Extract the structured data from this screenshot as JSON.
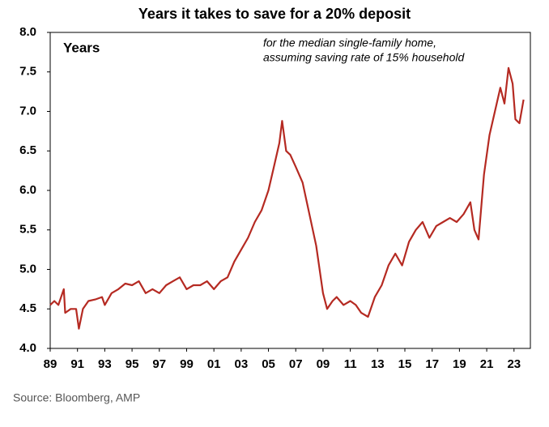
{
  "chart_data": {
    "type": "line",
    "title": "Years it takes to save for a 20% deposit",
    "y_label": "Years",
    "annotation": [
      "for the median single-family home,",
      "assuming saving rate of 15% household"
    ],
    "source": "Source: Bloomberg, AMP",
    "xlim": [
      1989,
      2024.2
    ],
    "xticks": [
      {
        "value": 1989,
        "label": "89"
      },
      {
        "value": 1991,
        "label": "91"
      },
      {
        "value": 1993,
        "label": "93"
      },
      {
        "value": 1995,
        "label": "95"
      },
      {
        "value": 1997,
        "label": "97"
      },
      {
        "value": 1999,
        "label": "99"
      },
      {
        "value": 2001,
        "label": "01"
      },
      {
        "value": 2003,
        "label": "03"
      },
      {
        "value": 2005,
        "label": "05"
      },
      {
        "value": 2007,
        "label": "07"
      },
      {
        "value": 2009,
        "label": "09"
      },
      {
        "value": 2011,
        "label": "11"
      },
      {
        "value": 2013,
        "label": "13"
      },
      {
        "value": 2015,
        "label": "15"
      },
      {
        "value": 2017,
        "label": "17"
      },
      {
        "value": 2019,
        "label": "19"
      },
      {
        "value": 2021,
        "label": "21"
      },
      {
        "value": 2023,
        "label": "23"
      }
    ],
    "ylim": [
      4,
      8
    ],
    "yticks": [
      {
        "value": 4,
        "label": "4.0"
      },
      4.5,
      {
        "value": 5,
        "label": "5.0"
      },
      5.5,
      {
        "value": 6,
        "label": "6.0"
      },
      6.5,
      {
        "value": 7,
        "label": "7.0"
      },
      7.5,
      {
        "value": 8,
        "label": "8.0"
      }
    ],
    "series": [
      {
        "name": "Years",
        "color": "#b52a22",
        "x": [
          1989.0,
          1989.3,
          1989.6,
          1990.0,
          1990.1,
          1990.5,
          1990.9,
          1991.1,
          1991.4,
          1991.8,
          1992.3,
          1992.8,
          1993.0,
          1993.5,
          1994.0,
          1994.5,
          1995.0,
          1995.5,
          1996.0,
          1996.5,
          1997.0,
          1997.5,
          1998.0,
          1998.5,
          1999.0,
          1999.5,
          2000.0,
          2000.5,
          2001.0,
          2001.5,
          2002.0,
          2002.5,
          2003.0,
          2003.5,
          2004.0,
          2004.5,
          2005.0,
          2005.4,
          2005.8,
          2006.0,
          2006.3,
          2006.6,
          2007.0,
          2007.5,
          2008.0,
          2008.5,
          2009.0,
          2009.3,
          2009.7,
          2010.0,
          2010.5,
          2011.0,
          2011.4,
          2011.8,
          2012.3,
          2012.8,
          2013.3,
          2013.8,
          2014.3,
          2014.8,
          2015.3,
          2015.8,
          2016.3,
          2016.8,
          2017.3,
          2017.8,
          2018.3,
          2018.8,
          2019.3,
          2019.8,
          2020.1,
          2020.4,
          2020.8,
          2021.2,
          2021.6,
          2022.0,
          2022.3,
          2022.6,
          2022.9,
          2023.1,
          2023.4,
          2023.7
        ],
        "values": [
          4.55,
          4.6,
          4.55,
          4.75,
          4.45,
          4.5,
          4.5,
          4.25,
          4.5,
          4.6,
          4.62,
          4.65,
          4.55,
          4.7,
          4.75,
          4.82,
          4.8,
          4.85,
          4.7,
          4.75,
          4.7,
          4.8,
          4.85,
          4.9,
          4.75,
          4.8,
          4.8,
          4.85,
          4.75,
          4.85,
          4.9,
          5.1,
          5.25,
          5.4,
          5.6,
          5.75,
          6.0,
          6.3,
          6.6,
          6.88,
          6.5,
          6.45,
          6.3,
          6.1,
          5.7,
          5.3,
          4.7,
          4.5,
          4.6,
          4.65,
          4.55,
          4.6,
          4.55,
          4.45,
          4.4,
          4.65,
          4.8,
          5.05,
          5.2,
          5.05,
          5.35,
          5.5,
          5.6,
          5.4,
          5.55,
          5.6,
          5.65,
          5.6,
          5.7,
          5.85,
          5.5,
          5.38,
          6.2,
          6.7,
          7.0,
          7.3,
          7.1,
          7.55,
          7.35,
          6.9,
          6.85,
          7.15
        ]
      }
    ]
  }
}
